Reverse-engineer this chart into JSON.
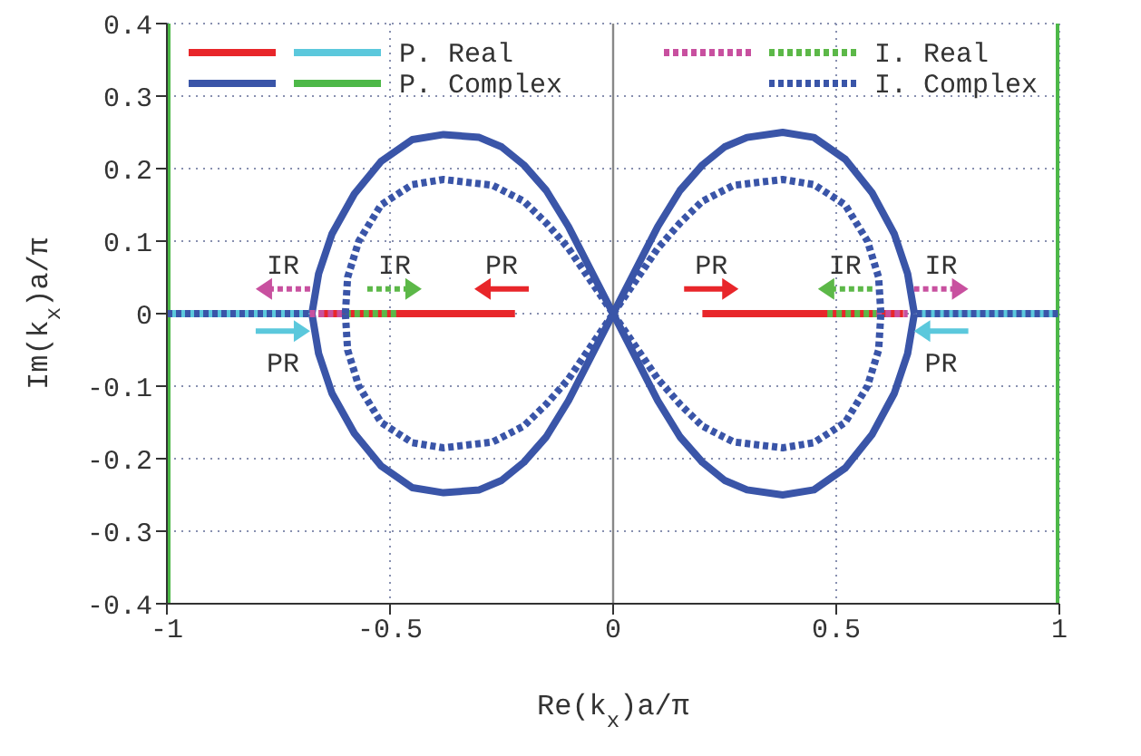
{
  "chart_data": {
    "type": "line",
    "xlabel": "Re(k$_{x}$)a/π",
    "ylabel": "Im(k$_{x}$)a/π",
    "xlim": [
      -1,
      1
    ],
    "xticks": [
      -1,
      -0.5,
      0,
      0.5,
      1
    ],
    "ylim": [
      -0.4,
      0.4
    ],
    "yticks": [
      -0.4,
      -0.3,
      -0.2,
      -0.1,
      0,
      0.1,
      0.2,
      0.3,
      0.4
    ],
    "grid": true,
    "legend": "top",
    "marker": "none",
    "ref_lines": [
      {
        "axis": "x",
        "value": 0,
        "color": "#888888"
      }
    ],
    "series": [
      {
        "color": "#e8262a",
        "line_style": "solid",
        "x": [
          -0.66,
          -0.22,
          null,
          0.2,
          0.65
        ],
        "values": [
          0,
          0,
          null,
          0,
          0
        ]
      },
      {
        "name": "P. Real",
        "color": "#5bc8dc",
        "line_style": "solid",
        "x": [
          -1,
          -0.68,
          null,
          0.68,
          1
        ],
        "values": [
          0,
          0,
          null,
          0,
          0
        ]
      },
      {
        "color": "#3a55a8",
        "line_style": "solid",
        "x": [
          -0.675,
          -0.66,
          -0.63,
          -0.58,
          -0.52,
          -0.45,
          -0.38,
          -0.3,
          -0.25,
          -0.2,
          -0.15,
          -0.1,
          -0.05,
          0,
          null,
          -0.675,
          -0.66,
          -0.63,
          -0.58,
          -0.52,
          -0.45,
          -0.38,
          -0.3,
          -0.25,
          -0.2,
          -0.15,
          -0.1,
          -0.05,
          0,
          null,
          0,
          0.05,
          0.1,
          0.15,
          0.2,
          0.25,
          0.3,
          0.38,
          0.45,
          0.52,
          0.58,
          0.63,
          0.66,
          0.675,
          null,
          0,
          0.05,
          0.1,
          0.15,
          0.2,
          0.25,
          0.3,
          0.38,
          0.45,
          0.52,
          0.58,
          0.63,
          0.66,
          0.675
        ],
        "values": [
          0,
          0.055,
          0.11,
          0.165,
          0.21,
          0.24,
          0.247,
          0.243,
          0.23,
          0.205,
          0.17,
          0.12,
          0.06,
          0,
          null,
          0,
          -0.055,
          -0.11,
          -0.165,
          -0.21,
          -0.24,
          -0.247,
          -0.243,
          -0.23,
          -0.205,
          -0.17,
          -0.12,
          -0.06,
          0,
          null,
          0,
          0.06,
          0.12,
          0.17,
          0.205,
          0.23,
          0.243,
          0.25,
          0.243,
          0.213,
          0.167,
          0.11,
          0.055,
          0,
          null,
          0,
          -0.06,
          -0.12,
          -0.17,
          -0.205,
          -0.23,
          -0.243,
          -0.25,
          -0.243,
          -0.213,
          -0.167,
          -0.11,
          -0.055,
          0
        ]
      },
      {
        "name": "P. Complex",
        "color": "#4db848",
        "line_style": "solid",
        "x": [
          -1,
          -1,
          null,
          1,
          1
        ],
        "values": [
          -0.4,
          0.4,
          null,
          -0.4,
          0.4
        ]
      },
      {
        "color": "#c8509f",
        "line_style": "dotted",
        "x": [
          -0.68,
          -0.6,
          null,
          0.59,
          0.66
        ],
        "values": [
          0,
          0,
          null,
          0,
          0
        ]
      },
      {
        "name": "I. Real",
        "color": "#5cb848",
        "line_style": "dotted",
        "x": [
          -0.6,
          -0.48,
          null,
          0.48,
          0.59
        ],
        "values": [
          0,
          0,
          null,
          0,
          0
        ]
      },
      {
        "name": "I. Complex",
        "color": "#3a55a8",
        "line_style": "dotted",
        "x": [
          -0.6,
          -0.595,
          -0.57,
          -0.52,
          -0.45,
          -0.38,
          -0.27,
          -0.2,
          -0.15,
          -0.1,
          -0.05,
          0,
          null,
          -0.6,
          -0.595,
          -0.57,
          -0.52,
          -0.45,
          -0.38,
          -0.27,
          -0.2,
          -0.15,
          -0.1,
          -0.05,
          0,
          null,
          0,
          0.05,
          0.1,
          0.15,
          0.2,
          0.27,
          0.38,
          0.45,
          0.52,
          0.57,
          0.595,
          0.6,
          null,
          0,
          0.05,
          0.1,
          0.15,
          0.2,
          0.27,
          0.38,
          0.45,
          0.52,
          0.57,
          0.595,
          0.6,
          null,
          -1,
          -0.68,
          null,
          0.68,
          1
        ],
        "values": [
          0,
          0.05,
          0.1,
          0.15,
          0.178,
          0.185,
          0.177,
          0.155,
          0.125,
          0.09,
          0.045,
          0,
          null,
          0,
          -0.05,
          -0.1,
          -0.15,
          -0.178,
          -0.185,
          -0.177,
          -0.155,
          -0.125,
          -0.09,
          -0.045,
          0,
          null,
          0,
          0.045,
          0.09,
          0.125,
          0.155,
          0.177,
          0.185,
          0.178,
          0.15,
          0.1,
          0.05,
          0,
          null,
          0,
          -0.045,
          -0.09,
          -0.125,
          -0.155,
          -0.177,
          -0.185,
          -0.178,
          -0.15,
          -0.1,
          -0.05,
          0,
          null,
          0,
          0,
          null,
          0,
          0
        ]
      }
    ],
    "annotations": [
      "IR",
      "IR",
      "PR",
      "PR",
      "IR",
      "IR",
      "PR",
      "PR"
    ]
  }
}
